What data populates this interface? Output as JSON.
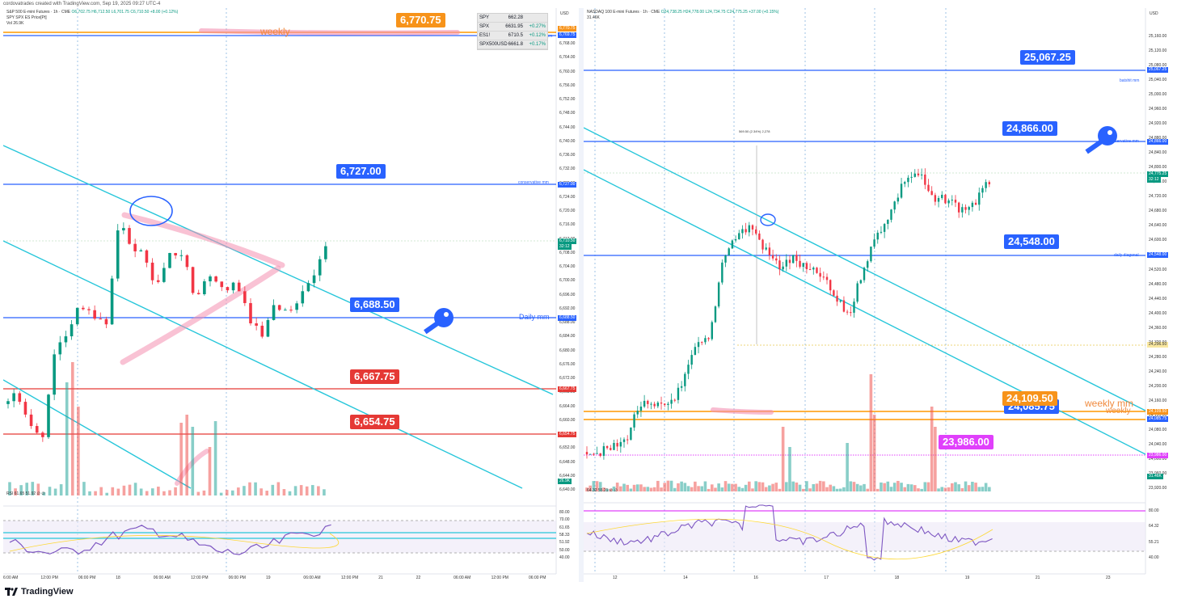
{
  "credit": "cordovatrades created with TradingView.com, Sep 19, 2025 09:27 UTC-4",
  "footer_brand": "TradingView",
  "colors": {
    "blue_line": "#2962ff",
    "red_line": "#e53935",
    "orange_line": "#ff9800",
    "teal": "#26c6da",
    "up": "#089981",
    "down": "#f23645",
    "pink": "#f48fb1",
    "label_blue": "#2962ff",
    "label_red": "#e53935",
    "label_orange": "#f7931a",
    "label_magenta": "#e040fb"
  },
  "left": {
    "title": "S&P 500 E-mini Futures · 1h · CME",
    "ohlc": "O6,702.75 H6,712.50 L6,701.75 C6,710.50 +8.00 (+0.12%)",
    "subtitle": "SPY SPX ES Price[Pt]",
    "vol_label": "Vol 26.9K",
    "currency": "USD",
    "watchlist": [
      {
        "sym": "SPY",
        "price": "662.28",
        "chg": ""
      },
      {
        "sym": "SPX",
        "price": "6631.95",
        "chg": "+0.27%"
      },
      {
        "sym": "ES1!",
        "price": "6710.5",
        "chg": "+0.12%"
      },
      {
        "sym": "SPX500USD",
        "price": "6661.8",
        "chg": "+0.17%"
      }
    ],
    "labels": [
      {
        "text": "6,770.75",
        "color": "orange"
      },
      {
        "text": "6,727.00",
        "color": "blue"
      },
      {
        "text": "6,688.50",
        "color": "blue"
      },
      {
        "text": "6,667.75",
        "color": "red"
      },
      {
        "text": "6,654.75",
        "color": "red"
      }
    ],
    "line_texts": {
      "weekly": "weekly",
      "batshit": "batshit mm",
      "conservative": "conservative mm",
      "daily": "Daily mm"
    },
    "price_tags": [
      "6,770.75",
      "6,769.75",
      "6,727.00",
      "6,710.50",
      "32:12",
      "6,688.50",
      "6,667.75",
      "6,654.75",
      "26.9K"
    ],
    "y_axis": [
      "6,768.00",
      "6,764.00",
      "6,760.00",
      "6,756.00",
      "6,752.00",
      "6,748.00",
      "6,744.00",
      "6,740.00",
      "6,736.00",
      "6,732.00",
      "6,728.00",
      "6,724.00",
      "6,720.00",
      "6,716.00",
      "6,712.00",
      "6,708.00",
      "6,704.00",
      "6,700.00",
      "6,696.00",
      "6,692.00",
      "6,688.00",
      "6,684.00",
      "6,680.00",
      "6,676.00",
      "6,672.00",
      "6,668.00",
      "6,664.00",
      "6,660.00",
      "6,656.00",
      "6,652.00",
      "6,648.00",
      "6,644.00",
      "6,640.00"
    ],
    "rsi_label": "RSI 61.65 51.92 ∅ ∅",
    "rsi_axis": [
      "80.00",
      "70.00",
      "61.65",
      "58.33",
      "51.92",
      "50.00",
      "40.00"
    ],
    "x_axis": [
      "6:00 AM",
      "12:00 PM",
      "06:00 PM",
      "18",
      "06:00 AM",
      "12:00 PM",
      "06:00 PM",
      "19",
      "06:00 AM",
      "12:00 PM",
      "21",
      "22",
      "06:00 AM",
      "12:00 PM",
      "06:00 PM"
    ]
  },
  "right": {
    "title": "NASDAQ 100 E-mini Futures · 1h · CME",
    "ohlc": "O24,738.25 H24,778.00 L24,734.75 C24,775.25 +37.00 (+0.15%)",
    "vol_label": "31.46K",
    "currency": "USD",
    "measure_text": "569.50 (2.34%) 2,278",
    "labels": [
      {
        "text": "25,067.25",
        "color": "blue"
      },
      {
        "text": "24,866.00",
        "color": "blue"
      },
      {
        "text": "24,548.00",
        "color": "blue"
      },
      {
        "text": "24,109.50",
        "color": "orange"
      },
      {
        "text": "24,085.75",
        "color": "blue"
      },
      {
        "text": "23,986.00",
        "color": "magenta"
      }
    ],
    "line_texts": {
      "batshit": "batshit mm",
      "conservative": "conservative mm",
      "daily": "daily diagonal",
      "weekly_mm": "weekly mm",
      "weekly": "weekly"
    },
    "price_tags": [
      "25,067.25",
      "24,866.00",
      "24,775.25",
      "32:12",
      "24,548.00",
      "24,296.50",
      "24,109.50",
      "24,085.75",
      "23,986.00",
      "31.46K"
    ],
    "y_axis": [
      "25,160.00",
      "25,120.00",
      "25,080.00",
      "25,040.00",
      "25,000.00",
      "24,960.00",
      "24,920.00",
      "24,880.00",
      "24,840.00",
      "24,800.00",
      "24,760.00",
      "24,720.00",
      "24,680.00",
      "24,640.00",
      "24,600.00",
      "24,560.00",
      "24,520.00",
      "24,480.00",
      "24,440.00",
      "24,400.00",
      "24,360.00",
      "24,320.00",
      "24,280.00",
      "24,240.00",
      "24,200.00",
      "24,160.00",
      "24,120.00",
      "24,080.00",
      "24,040.00",
      "24,000.00",
      "23,960.00",
      "23,920.00"
    ],
    "rsi_label": "64.32 55.21 ∅ ∅",
    "rsi_axis": [
      "80.00",
      "64.32",
      "55.21",
      "40.00"
    ],
    "x_axis": [
      "12",
      "14",
      "16",
      "17",
      "18",
      "19",
      "21",
      "23"
    ]
  }
}
